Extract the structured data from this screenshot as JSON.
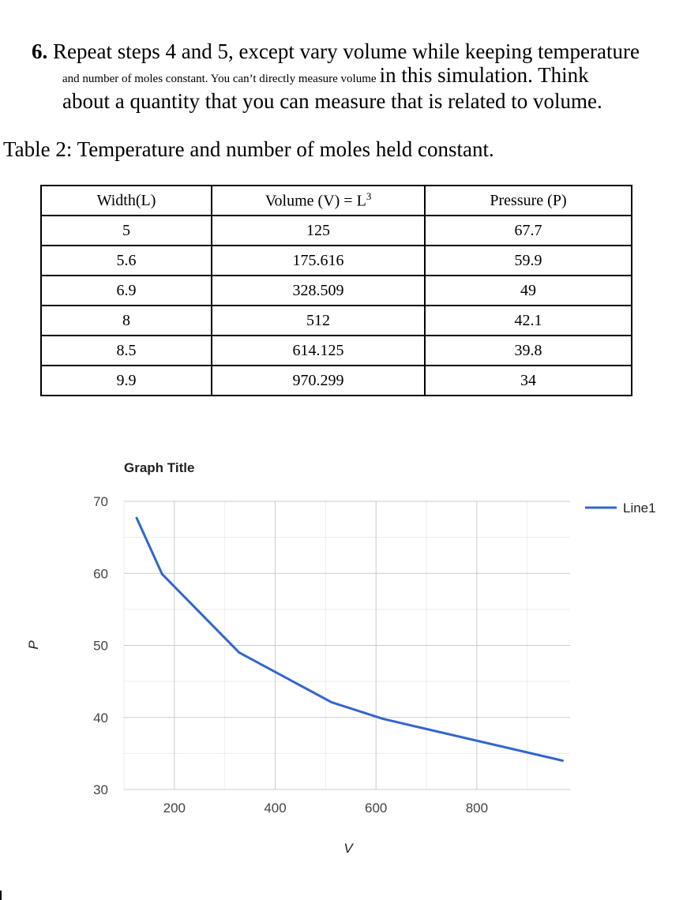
{
  "step": {
    "number": "6.",
    "line1": "Repeat steps 4 and 5, except vary volume while keeping temperature",
    "line2_small": "and number of moles constant.   You can’t directly measure volume",
    "line2_large": "in this simulation.  Think",
    "line3": "about a quantity that you can measure that is related to volume."
  },
  "table": {
    "caption": "Table 2:  Temperature and number of moles held constant.",
    "headers": [
      "Width(L)",
      "Volume (V) = L",
      "Pressure (P)"
    ],
    "volume_superscript": "3",
    "rows": [
      [
        "5",
        "125",
        "67.7"
      ],
      [
        "5.6",
        "175.616",
        "59.9"
      ],
      [
        "6.9",
        "328.509",
        "49"
      ],
      [
        "8",
        "512",
        "42.1"
      ],
      [
        "8.5",
        "614.125",
        "39.8"
      ],
      [
        "9.9",
        "970.299",
        "34"
      ]
    ]
  },
  "chart_data": {
    "type": "line",
    "title": "Graph Title",
    "xlabel": "V",
    "ylabel": "P",
    "xlim": [
      100,
      985
    ],
    "ylim": [
      30,
      70
    ],
    "x_ticks": [
      200,
      400,
      600,
      800
    ],
    "y_ticks": [
      30,
      40,
      50,
      60,
      70
    ],
    "grid": true,
    "legend_position": "right",
    "series": [
      {
        "name": "Line1",
        "color": "#3366cc",
        "x": [
          125,
          175.616,
          328.509,
          512,
          614.125,
          970.299
        ],
        "y": [
          67.7,
          59.9,
          49,
          42.1,
          39.8,
          34
        ]
      }
    ]
  }
}
